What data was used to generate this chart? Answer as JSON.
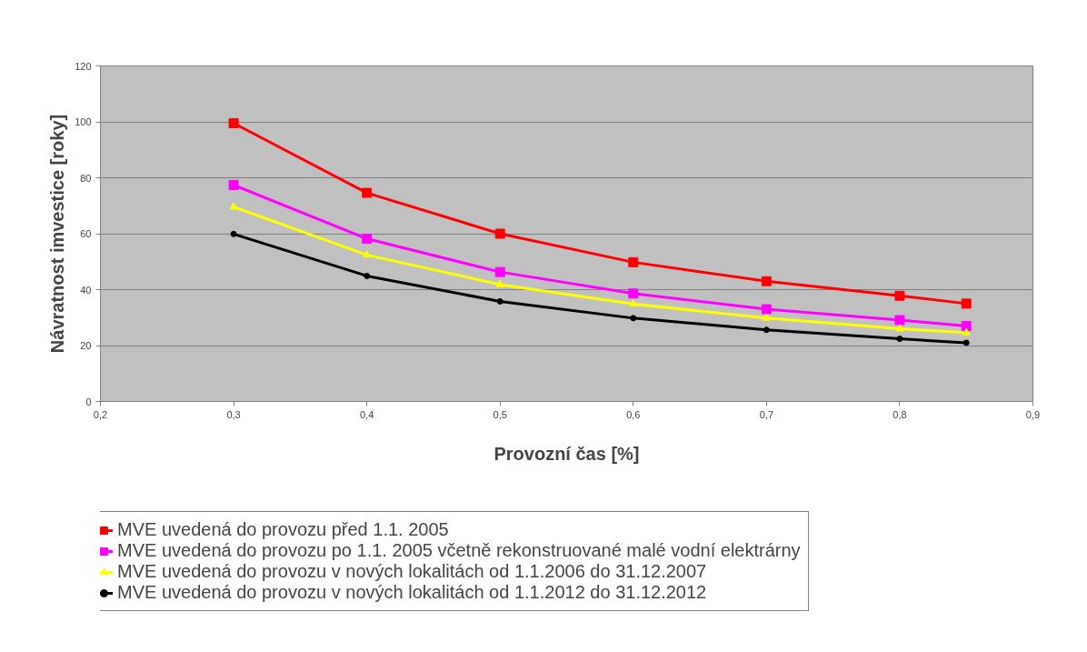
{
  "chart_data": {
    "type": "line",
    "xlabel": "Provozní čas [%]",
    "ylabel": "Návratnost imvestice [roky]",
    "x": [
      0.3,
      0.4,
      0.5,
      0.6,
      0.7,
      0.8,
      0.85
    ],
    "series": [
      {
        "name": "MVE uvedená do provozu před 1.1. 2005",
        "color": "#ff0000",
        "marker": "square",
        "values": [
          99.5,
          74.6,
          60,
          49.8,
          43,
          37.8,
          35
        ]
      },
      {
        "name": "MVE uvedená do provozu po 1.1. 2005 včetně rekonstruované malé vodní elektrárny",
        "color": "#ff00ff",
        "marker": "square",
        "values": [
          77.4,
          58.2,
          46.3,
          38.6,
          33,
          29.1,
          27
        ]
      },
      {
        "name": "MVE uvedená do provozu v nových lokalitách od 1.1.2006 do 31.12.2007",
        "color": "#ffff00",
        "marker": "triangle",
        "values": [
          69.6,
          52.4,
          41.8,
          34.9,
          29.8,
          26,
          24.6
        ]
      },
      {
        "name": "MVE uvedená do provozu v nových lokalitách od 1.1.2012 do 31.12.2012",
        "color": "#000000",
        "marker": "circle",
        "values": [
          59.9,
          44.9,
          35.8,
          29.8,
          25.6,
          22.4,
          21
        ]
      }
    ],
    "xlim": [
      0.2,
      0.9
    ],
    "xticks": [
      {
        "value": 0.2,
        "label": "0,2"
      },
      {
        "value": 0.3,
        "label": "0,3"
      },
      {
        "value": 0.4,
        "label": "0,4"
      },
      {
        "value": 0.5,
        "label": "0,5"
      },
      {
        "value": 0.6,
        "label": "0,6"
      },
      {
        "value": 0.7,
        "label": "0,7"
      },
      {
        "value": 0.8,
        "label": "0,8"
      },
      {
        "value": 0.9,
        "label": "0,9"
      }
    ],
    "ylim": [
      0,
      120
    ],
    "yticks": [
      0,
      20,
      40,
      60,
      80,
      100,
      120
    ],
    "grid": "y",
    "legend": "bottom",
    "line_style": "solid"
  }
}
